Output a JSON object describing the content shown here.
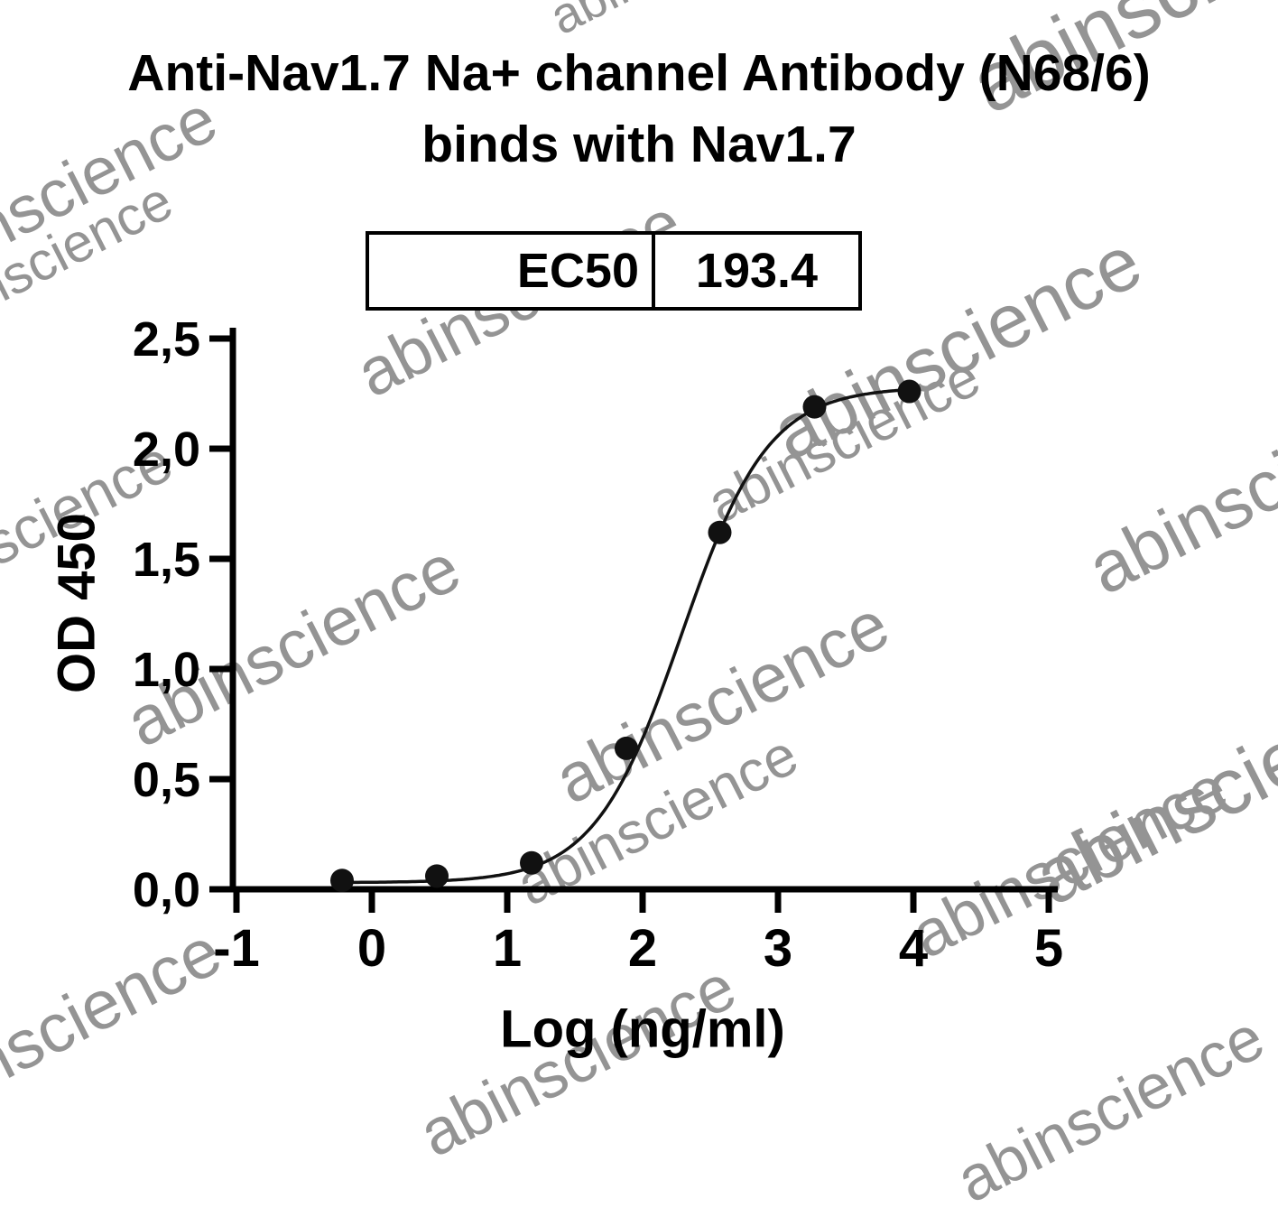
{
  "header": {
    "line1": "Anti-Nav1.7 Na+ channel Antibody (N68/6)",
    "line2": "binds with Nav1.7"
  },
  "watermark": {
    "text": "abinscience",
    "color": "#949494"
  },
  "chart_data": {
    "type": "scatter",
    "title": "Anti-Nav1.7 Na+ channel Antibody (N68/6) binds with Nav1.7",
    "xlabel": "Log (ng/ml)",
    "ylabel": "OD 450",
    "xlim": [
      -1,
      5
    ],
    "ylim": [
      0,
      2.5
    ],
    "xticks": [
      "-1",
      "0",
      "1",
      "2",
      "3",
      "4",
      "5"
    ],
    "xtick_values": [
      -1,
      0,
      1,
      2,
      3,
      4,
      5
    ],
    "yticks": [
      "0,0",
      "0,5",
      "1,0",
      "1,5",
      "2,0",
      "2,5"
    ],
    "ytick_values": [
      0,
      0.5,
      1,
      1.5,
      2,
      2.5
    ],
    "x": [
      -0.22,
      0.48,
      1.18,
      1.88,
      2.57,
      3.27,
      3.97
    ],
    "y": [
      0.04,
      0.06,
      0.12,
      0.64,
      1.62,
      2.19,
      2.26
    ],
    "curve": {
      "model": "4PL",
      "bottom": 0.03,
      "top": 2.28,
      "logEC50": 2.2865,
      "hill": 1.35
    },
    "annotation": {
      "label": "EC50",
      "value": "193.4"
    },
    "grid": false,
    "legend_position": "none",
    "marker_color": "#111111",
    "line_color": "#111111"
  }
}
